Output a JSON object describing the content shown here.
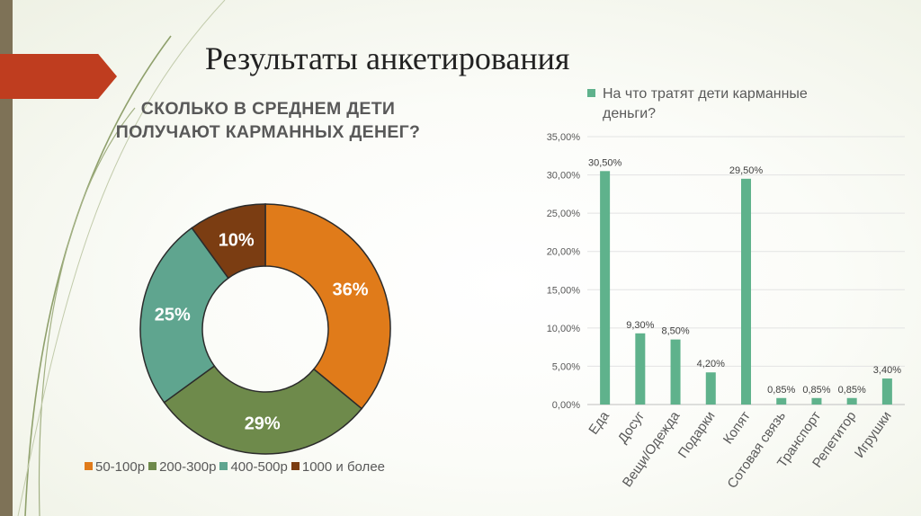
{
  "slide": {
    "title": "Результаты анкетирования"
  },
  "chart_data": [
    {
      "type": "pie",
      "variant": "donut",
      "title_lines": [
        "СКОЛЬКО В СРЕДНЕМ ДЕТИ",
        "ПОЛУЧАЮТ КАРМАННЫХ ДЕНЕГ?"
      ],
      "categories": [
        "50-100р",
        "200-300р",
        "400-500р",
        "1000 и более"
      ],
      "values": [
        36,
        29,
        25,
        10
      ],
      "labels": [
        "36%",
        "29%",
        "25%",
        "10%"
      ],
      "colors": [
        "#e07b1a",
        "#6e8a4b",
        "#5fa58f",
        "#7b3d12"
      ],
      "legend_position": "bottom"
    },
    {
      "type": "bar",
      "legend_label_lines": [
        "На что тратят дети карманные",
        "деньги?"
      ],
      "legend_position": "top",
      "categories": [
        "Еда",
        "Досуг",
        "Вещи/Одежда",
        "Подарки",
        "Копят",
        "Сотовая связь",
        "Транспорт",
        "Репетитор",
        "Игрушки"
      ],
      "values": [
        30.5,
        9.3,
        8.5,
        4.2,
        29.5,
        0.85,
        0.85,
        0.85,
        3.4
      ],
      "data_labels": [
        "30,50%",
        "9,30%",
        "8,50%",
        "4,20%",
        "29,50%",
        "0,85%",
        "0,85%",
        "0,85%",
        "3,40%"
      ],
      "ylim": [
        0,
        35
      ],
      "ytick_values": [
        0,
        5,
        10,
        15,
        20,
        25,
        30,
        35
      ],
      "ytick_labels": [
        "0,00%",
        "5,00%",
        "10,00%",
        "15,00%",
        "20,00%",
        "25,00%",
        "30,00%",
        "35,00%"
      ],
      "color": "#5fb28c",
      "grid": true
    }
  ]
}
